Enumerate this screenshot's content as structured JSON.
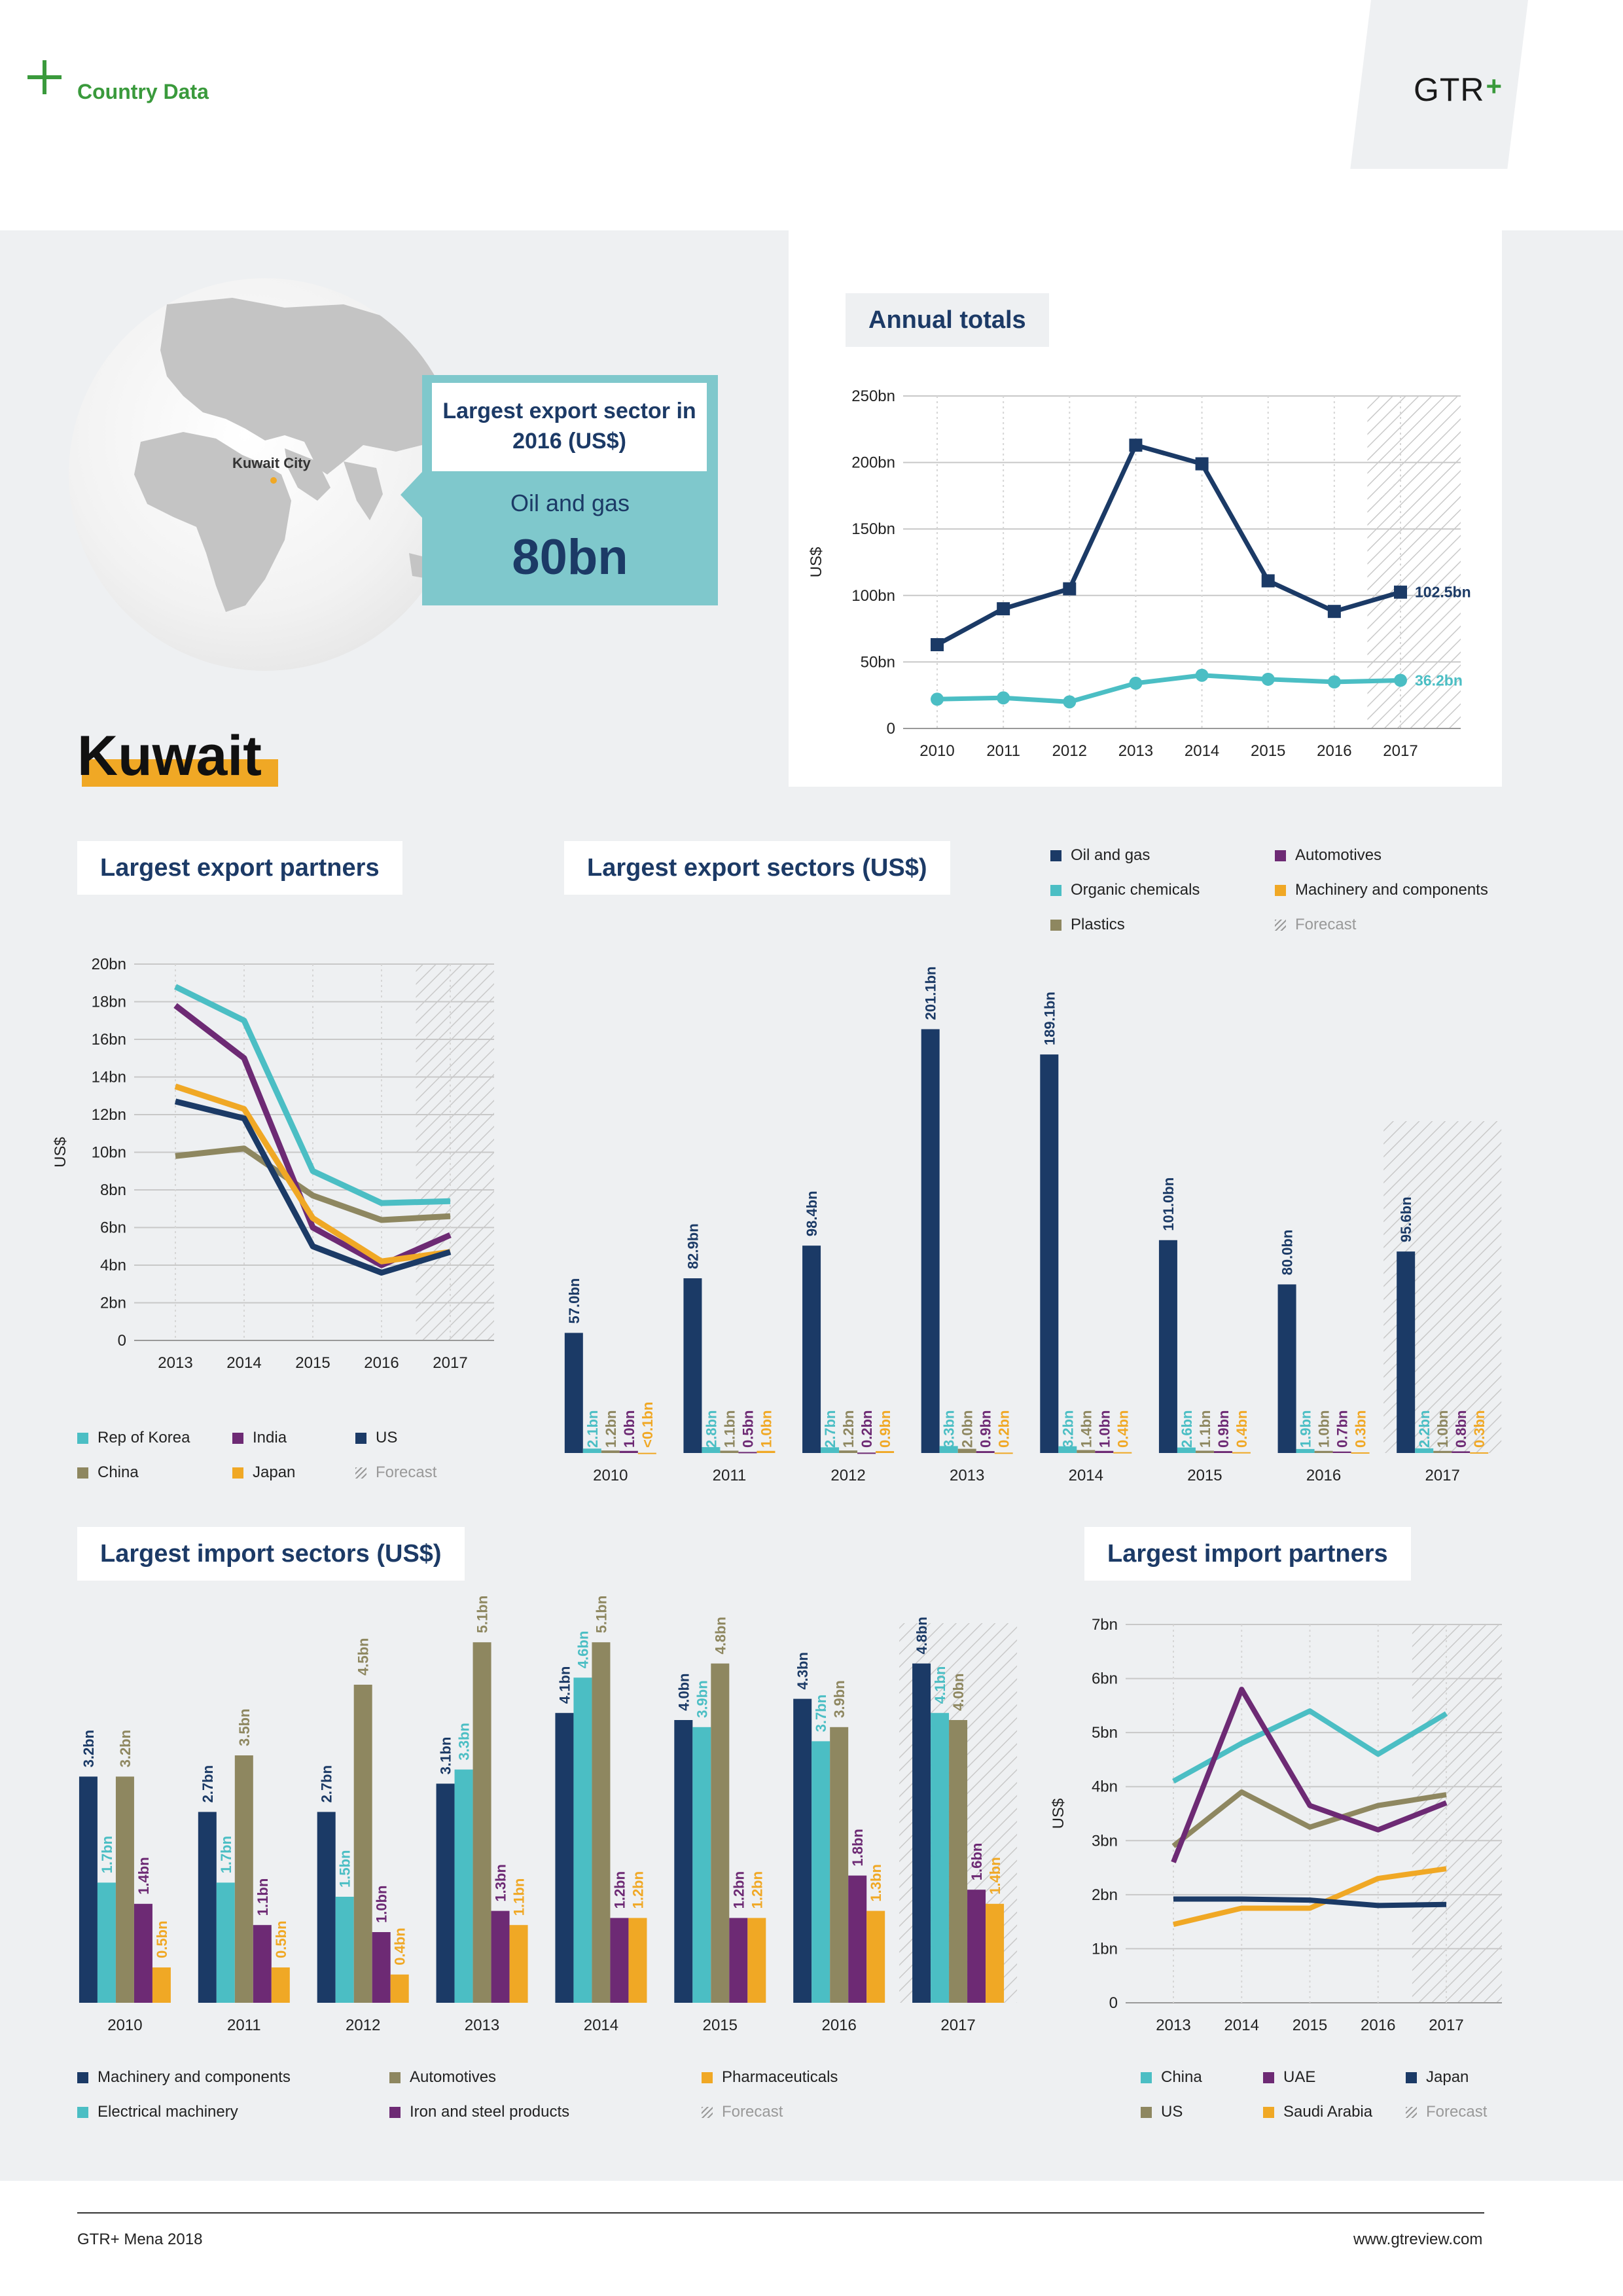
{
  "header": {
    "section": "Country Data",
    "logo_text": "GTR",
    "logo_plus": "+"
  },
  "map": {
    "city": "Kuwait City"
  },
  "callout": {
    "title": "Largest export sector in 2016 (US$)",
    "sector": "Oil and gas",
    "value": "80bn"
  },
  "country": "Kuwait",
  "colors": {
    "navy": "#1b3a66",
    "teal": "#4bbec4",
    "purple": "#6d2a74",
    "olive": "#8e8760",
    "orange": "#f0a825"
  },
  "chart_data": [
    {
      "id": "annual_totals",
      "type": "line",
      "title": "Annual totals",
      "ylabel": "US$",
      "x": [
        "2010",
        "2011",
        "2012",
        "2013",
        "2014",
        "2015",
        "2016",
        "2017"
      ],
      "yticks": [
        "0",
        "50bn",
        "100bn",
        "150bn",
        "200bn",
        "250bn"
      ],
      "ylim": [
        0,
        250
      ],
      "forecast_from": "2017",
      "series": [
        {
          "values": [
            63,
            90,
            105,
            213,
            199,
            111,
            88,
            102.5
          ],
          "color": "#1b3a66",
          "marker": "square",
          "end_label": "102.5bn"
        },
        {
          "values": [
            22,
            23,
            20,
            34,
            40,
            37,
            35,
            36.2
          ],
          "color": "#4bbec4",
          "marker": "circle",
          "end_label": "36.2bn"
        }
      ]
    },
    {
      "id": "export_partners",
      "type": "line",
      "title": "Largest export partners",
      "ylabel": "US$",
      "x": [
        "2013",
        "2014",
        "2015",
        "2016",
        "2017"
      ],
      "yticks": [
        "0",
        "2bn",
        "4bn",
        "6bn",
        "8bn",
        "10bn",
        "12bn",
        "14bn",
        "16bn",
        "18bn",
        "20bn"
      ],
      "ylim": [
        0,
        20
      ],
      "forecast_from": "2017",
      "series": [
        {
          "name": "Rep of Korea",
          "values": [
            18.8,
            17.0,
            9.0,
            7.3,
            7.4
          ],
          "color": "#4bbec4"
        },
        {
          "name": "China",
          "values": [
            9.8,
            10.2,
            7.7,
            6.4,
            6.6
          ],
          "color": "#8e8760"
        },
        {
          "name": "India",
          "values": [
            17.8,
            15.0,
            6.0,
            4.0,
            5.6
          ],
          "color": "#6d2a74"
        },
        {
          "name": "Japan",
          "values": [
            13.5,
            12.3,
            6.5,
            4.2,
            4.7
          ],
          "color": "#f0a825"
        },
        {
          "name": "US",
          "values": [
            12.7,
            11.8,
            5.0,
            3.6,
            4.7
          ],
          "color": "#1b3a66"
        }
      ],
      "legend_forecast": "Forecast"
    },
    {
      "id": "export_sectors",
      "type": "bar",
      "title": "Largest export sectors (US$)",
      "categories": [
        "2010",
        "2011",
        "2012",
        "2013",
        "2014",
        "2015",
        "2016",
        "2017"
      ],
      "forecast_from": "2017",
      "series": [
        {
          "name": "Oil and gas",
          "color": "#1b3a66",
          "values": [
            57.0,
            82.9,
            98.4,
            201.1,
            189.1,
            101.0,
            80.0,
            95.6
          ],
          "labels": [
            "57.0bn",
            "82.9bn",
            "98.4bn",
            "201.1bn",
            "189.1bn",
            "101.0bn",
            "80.0bn",
            "95.6bn"
          ]
        },
        {
          "name": "Organic chemicals",
          "color": "#4bbec4",
          "values": [
            2.1,
            2.8,
            2.7,
            3.3,
            3.2,
            2.6,
            1.9,
            2.2
          ],
          "labels": [
            "2.1bn",
            "2.8bn",
            "2.7bn",
            "3.3bn",
            "3.2bn",
            "2.6bn",
            "1.9bn",
            "2.2bn"
          ]
        },
        {
          "name": "Plastics",
          "color": "#8e8760",
          "values": [
            1.2,
            1.1,
            1.2,
            2.0,
            1.4,
            1.1,
            1.0,
            1.0
          ],
          "labels": [
            "1.2bn",
            "1.1bn",
            "1.2bn",
            "2.0bn",
            "1.4bn",
            "1.1bn",
            "1.0bn",
            "1.0bn"
          ]
        },
        {
          "name": "Automotives",
          "color": "#6d2a74",
          "values": [
            1.0,
            0.5,
            0.2,
            0.9,
            1.0,
            0.9,
            0.7,
            0.8
          ],
          "labels": [
            "1.0bn",
            "0.5bn",
            "0.2bn",
            "0.9bn",
            "1.0bn",
            "0.9bn",
            "0.7bn",
            "0.8bn"
          ]
        },
        {
          "name": "Machinery and components",
          "color": "#f0a825",
          "values": [
            0.1,
            1.0,
            0.9,
            0.2,
            0.4,
            0.4,
            0.3,
            0.3
          ],
          "labels": [
            "<0.1bn",
            "1.0bn",
            "0.9bn",
            "0.2bn",
            "0.4bn",
            "0.4bn",
            "0.3bn",
            "0.3bn"
          ]
        }
      ],
      "legend_forecast": "Forecast"
    },
    {
      "id": "import_sectors",
      "type": "bar",
      "title": "Largest import sectors (US$)",
      "categories": [
        "2010",
        "2011",
        "2012",
        "2013",
        "2014",
        "2015",
        "2016",
        "2017"
      ],
      "forecast_from": "2017",
      "series": [
        {
          "name": "Machinery and components",
          "color": "#1b3a66",
          "values": [
            3.2,
            2.7,
            2.7,
            3.1,
            4.1,
            4.0,
            4.3,
            4.8
          ],
          "labels": [
            "3.2bn",
            "2.7bn",
            "2.7bn",
            "3.1bn",
            "4.1bn",
            "4.0bn",
            "4.3bn",
            "4.8bn"
          ]
        },
        {
          "name": "Electrical machinery",
          "color": "#4bbec4",
          "values": [
            1.7,
            1.7,
            1.5,
            3.3,
            4.6,
            3.9,
            3.7,
            4.1
          ],
          "labels": [
            "1.7bn",
            "1.7bn",
            "1.5bn",
            "3.3bn",
            "4.6bn",
            "3.9bn",
            "3.7bn",
            "4.1bn"
          ]
        },
        {
          "name": "Automotives",
          "color": "#8e8760",
          "values": [
            3.2,
            3.5,
            4.5,
            5.1,
            5.1,
            4.8,
            3.9,
            4.0
          ],
          "labels": [
            "3.2bn",
            "3.5bn",
            "4.5bn",
            "5.1bn",
            "5.1bn",
            "4.8bn",
            "3.9bn",
            "4.0bn"
          ]
        },
        {
          "name": "Iron and steel products",
          "color": "#6d2a74",
          "values": [
            1.4,
            1.1,
            1.0,
            1.3,
            1.2,
            1.2,
            1.8,
            1.6
          ],
          "labels": [
            "1.4bn",
            "1.1bn",
            "1.0bn",
            "1.3bn",
            "1.2bn",
            "1.2bn",
            "1.8bn",
            "1.6bn"
          ]
        },
        {
          "name": "Pharmaceuticals",
          "color": "#f0a825",
          "values": [
            0.5,
            0.5,
            0.4,
            1.1,
            1.2,
            1.2,
            1.3,
            1.4
          ],
          "labels": [
            "0.5bn",
            "0.5bn",
            "0.4bn",
            "1.1bn",
            "1.2bn",
            "1.2bn",
            "1.3bn",
            "1.4bn"
          ]
        }
      ],
      "legend_forecast": "Forecast"
    },
    {
      "id": "import_partners",
      "type": "line",
      "title": "Largest import partners",
      "ylabel": "US$",
      "x": [
        "2013",
        "2014",
        "2015",
        "2016",
        "2017"
      ],
      "yticks": [
        "0",
        "1bn",
        "2bn",
        "3bn",
        "4bn",
        "5bn",
        "6bn",
        "7bn"
      ],
      "ylim": [
        0,
        7
      ],
      "forecast_from": "2017",
      "series": [
        {
          "name": "China",
          "values": [
            4.1,
            4.8,
            5.4,
            4.6,
            5.35
          ],
          "color": "#4bbec4"
        },
        {
          "name": "US",
          "values": [
            2.9,
            3.9,
            3.25,
            3.65,
            3.85
          ],
          "color": "#8e8760"
        },
        {
          "name": "UAE",
          "values": [
            2.6,
            5.8,
            3.65,
            3.2,
            3.7
          ],
          "color": "#6d2a74"
        },
        {
          "name": "Saudi Arabia",
          "values": [
            1.45,
            1.75,
            1.75,
            2.3,
            2.48
          ],
          "color": "#f0a825"
        },
        {
          "name": "Japan",
          "values": [
            1.92,
            1.92,
            1.9,
            1.8,
            1.82
          ],
          "color": "#1b3a66"
        }
      ],
      "legend_forecast": "Forecast"
    }
  ],
  "footer": {
    "left": "GTR+ Mena 2018",
    "right": "www.gtreview.com"
  }
}
